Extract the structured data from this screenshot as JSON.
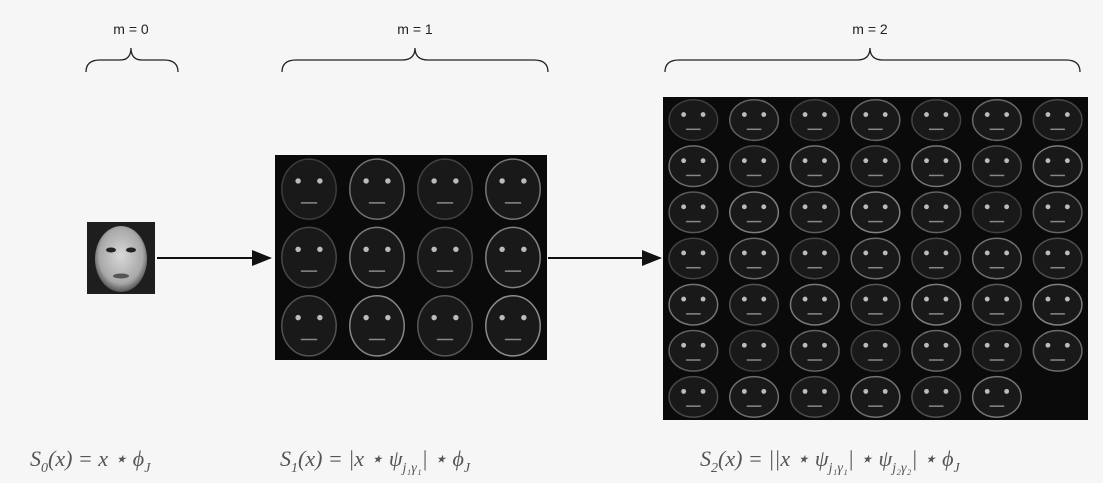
{
  "levels": [
    "m = 0",
    "m = 1",
    "m = 2"
  ],
  "formulas": [
    [
      {
        "text": "S",
        "sub": "0"
      },
      {
        "text": "(x) = x ⋆ ϕ",
        "sub": "J"
      }
    ],
    [
      {
        "text": "S",
        "sub": "1"
      },
      {
        "text": "(x) = |x ⋆ ψ",
        "sub": "j₁γ₁"
      },
      {
        "text": "| ⋆ ϕ",
        "sub": "J"
      }
    ],
    [
      {
        "text": "S",
        "sub": "2"
      },
      {
        "text": "(x) = ||x ⋆ ψ",
        "sub": "j₁γ₁"
      },
      {
        "text": "| ⋆ ψ",
        "sub": "j₂γ₂"
      },
      {
        "text": "| ⋆ ϕ",
        "sub": "J"
      }
    ]
  ]
}
